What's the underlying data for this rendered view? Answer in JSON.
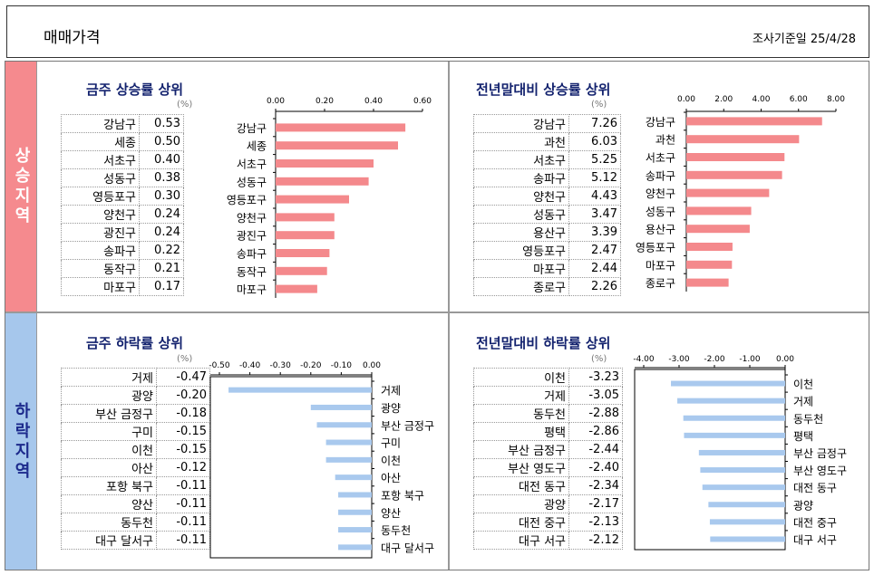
{
  "header": {
    "title": "매매가격",
    "date": "조사기준일 25/4/28"
  },
  "sidebar": {
    "up": "상승지역",
    "down": "하락지역"
  },
  "unit": "(%)",
  "chart_data": [
    {
      "type": "bar",
      "title": "금주 상승률 상위",
      "orientation": "horizontal",
      "categories": [
        "강남구",
        "세종",
        "서초구",
        "성동구",
        "영등포구",
        "양천구",
        "광진구",
        "송파구",
        "동작구",
        "마포구"
      ],
      "values": [
        0.53,
        0.5,
        0.4,
        0.38,
        0.3,
        0.24,
        0.24,
        0.22,
        0.21,
        0.17
      ],
      "labels": [
        "0.53",
        "0.50",
        "0.40",
        "0.38",
        "0.30",
        "0.24",
        "0.24",
        "0.22",
        "0.21",
        "0.17"
      ],
      "xticks": [
        "0.00",
        "0.20",
        "0.40",
        "0.60"
      ],
      "xlim": [
        0,
        0.6
      ],
      "color": "#f4898c"
    },
    {
      "type": "bar",
      "title": "전년말대비 상승률 상위",
      "orientation": "horizontal",
      "categories": [
        "강남구",
        "과천",
        "서초구",
        "송파구",
        "양천구",
        "성동구",
        "용산구",
        "영등포구",
        "마포구",
        "종로구"
      ],
      "values": [
        7.26,
        6.03,
        5.25,
        5.12,
        4.43,
        3.47,
        3.39,
        2.47,
        2.44,
        2.26
      ],
      "labels": [
        "7.26",
        "6.03",
        "5.25",
        "5.12",
        "4.43",
        "3.47",
        "3.39",
        "2.47",
        "2.44",
        "2.26"
      ],
      "xticks": [
        "0.00",
        "2.00",
        "4.00",
        "6.00",
        "8.00"
      ],
      "xlim": [
        0,
        8
      ],
      "color": "#f4898c"
    },
    {
      "type": "bar",
      "title": "금주 하락률 상위",
      "orientation": "horizontal",
      "categories": [
        "거제",
        "광양",
        "부산 금정구",
        "구미",
        "이천",
        "아산",
        "포항 북구",
        "양산",
        "동두천",
        "대구 달서구"
      ],
      "values": [
        -0.47,
        -0.2,
        -0.18,
        -0.15,
        -0.15,
        -0.12,
        -0.11,
        -0.11,
        -0.11,
        -0.11
      ],
      "labels": [
        "-0.47",
        "-0.20",
        "-0.18",
        "-0.15",
        "-0.15",
        "-0.12",
        "-0.11",
        "-0.11",
        "-0.11",
        "-0.11"
      ],
      "xticks": [
        "-0.50",
        "-0.40",
        "-0.30",
        "-0.20",
        "-0.10",
        "0.00"
      ],
      "xlim": [
        -0.5,
        0
      ],
      "color": "#a9c9ee"
    },
    {
      "type": "bar",
      "title": "전년말대비 하락률 상위",
      "orientation": "horizontal",
      "categories": [
        "이천",
        "거제",
        "동두천",
        "평택",
        "부산 금정구",
        "부산 영도구",
        "대전 동구",
        "광양",
        "대전 중구",
        "대구 서구"
      ],
      "values": [
        -3.23,
        -3.05,
        -2.88,
        -2.86,
        -2.44,
        -2.4,
        -2.34,
        -2.17,
        -2.13,
        -2.12
      ],
      "labels": [
        "-3.23",
        "-3.05",
        "-2.88",
        "-2.86",
        "-2.44",
        "-2.40",
        "-2.34",
        "-2.17",
        "-2.13",
        "-2.12"
      ],
      "xticks": [
        "-4.00",
        "-3.00",
        "-2.00",
        "-1.00",
        "0.00"
      ],
      "xlim": [
        -4,
        0
      ],
      "color": "#a9c9ee"
    }
  ]
}
